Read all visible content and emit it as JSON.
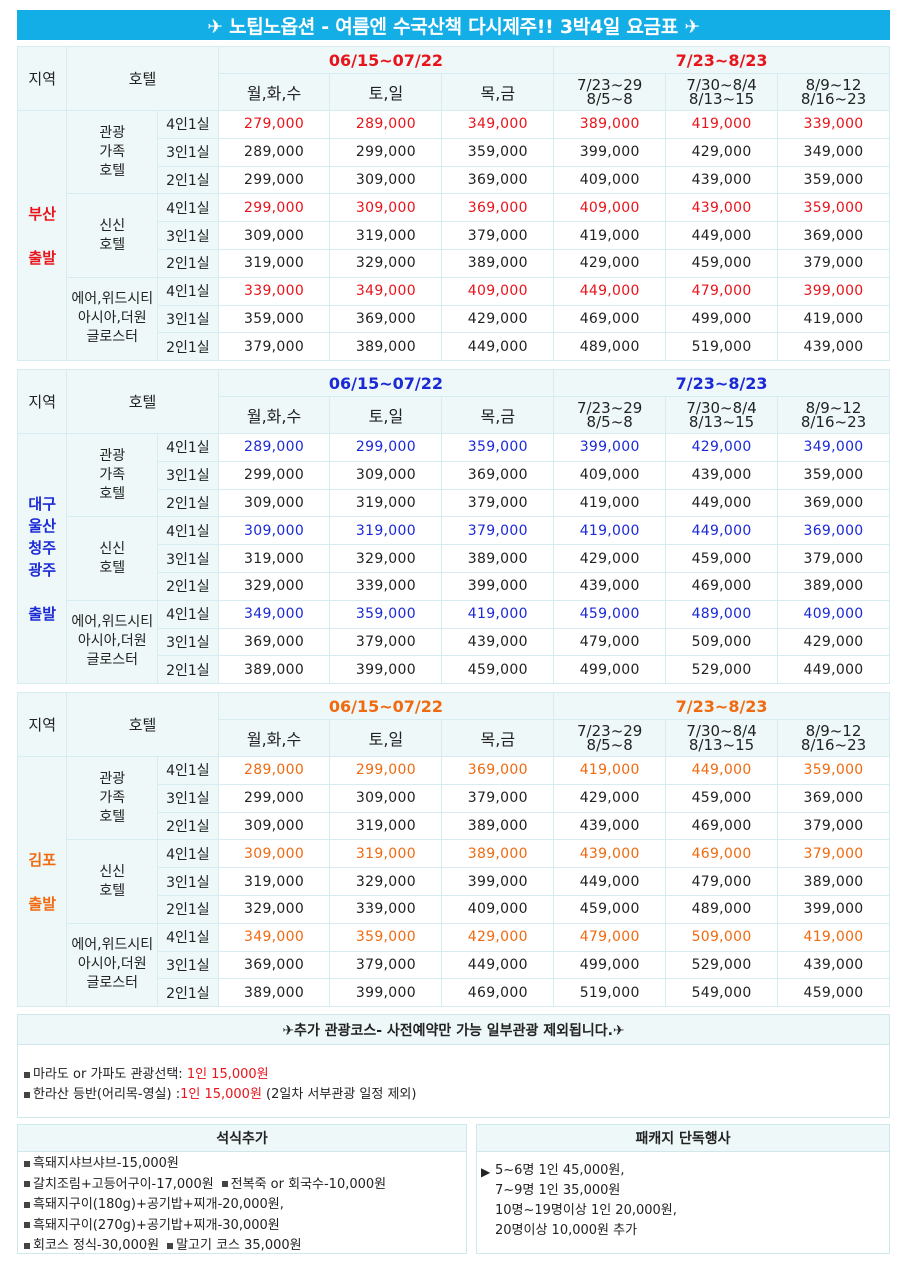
{
  "title": "✈ 노팁노옵션 - 여름엔 수국산책 다시제주!! 3박4일 요금표 ✈",
  "header": {
    "region": "지역",
    "hotel": "호텔",
    "period1": "06/15~07/22",
    "period2": "7/23~8/23",
    "days": [
      "월,화,수",
      "토,일",
      "목,금"
    ],
    "subperiods": [
      [
        "7/23~29",
        "8/5~8"
      ],
      [
        "7/30~8/4",
        "8/13~15"
      ],
      [
        "8/9~12",
        "8/16~23"
      ]
    ]
  },
  "sections": [
    {
      "region_lines": [
        "부산",
        "출발"
      ],
      "hotels": [
        {
          "name_lines": [
            "관광",
            "가족",
            "호텔"
          ],
          "rows": [
            {
              "room": "4인1실",
              "prices": [
                "279,000",
                "289,000",
                "349,000",
                "389,000",
                "419,000",
                "339,000"
              ]
            },
            {
              "room": "3인1실",
              "prices": [
                "289,000",
                "299,000",
                "359,000",
                "399,000",
                "429,000",
                "349,000"
              ]
            },
            {
              "room": "2인1실",
              "prices": [
                "299,000",
                "309,000",
                "369,000",
                "409,000",
                "439,000",
                "359,000"
              ]
            }
          ]
        },
        {
          "name_lines": [
            "신신",
            "호텔"
          ],
          "rows": [
            {
              "room": "4인1실",
              "prices": [
                "299,000",
                "309,000",
                "369,000",
                "409,000",
                "439,000",
                "359,000"
              ]
            },
            {
              "room": "3인1실",
              "prices": [
                "309,000",
                "319,000",
                "379,000",
                "419,000",
                "449,000",
                "369,000"
              ]
            },
            {
              "room": "2인1실",
              "prices": [
                "319,000",
                "329,000",
                "389,000",
                "429,000",
                "459,000",
                "379,000"
              ]
            }
          ]
        },
        {
          "name_lines": [
            "에어,위드시티",
            "아시아,더원",
            "글로스터"
          ],
          "rows": [
            {
              "room": "4인1실",
              "prices": [
                "339,000",
                "349,000",
                "409,000",
                "449,000",
                "479,000",
                "399,000"
              ]
            },
            {
              "room": "3인1실",
              "prices": [
                "359,000",
                "369,000",
                "429,000",
                "469,000",
                "499,000",
                "419,000"
              ]
            },
            {
              "room": "2인1실",
              "prices": [
                "379,000",
                "389,000",
                "449,000",
                "489,000",
                "519,000",
                "439,000"
              ]
            }
          ]
        }
      ]
    },
    {
      "region_lines": [
        "대구",
        "울산",
        "청주",
        "광주",
        "출발"
      ],
      "hotels": [
        {
          "name_lines": [
            "관광",
            "가족",
            "호텔"
          ],
          "rows": [
            {
              "room": "4인1실",
              "prices": [
                "289,000",
                "299,000",
                "359,000",
                "399,000",
                "429,000",
                "349,000"
              ]
            },
            {
              "room": "3인1실",
              "prices": [
                "299,000",
                "309,000",
                "369,000",
                "409,000",
                "439,000",
                "359,000"
              ]
            },
            {
              "room": "2인1실",
              "prices": [
                "309,000",
                "319,000",
                "379,000",
                "419,000",
                "449,000",
                "369,000"
              ]
            }
          ]
        },
        {
          "name_lines": [
            "신신",
            "호텔"
          ],
          "rows": [
            {
              "room": "4인1실",
              "prices": [
                "309,000",
                "319,000",
                "379,000",
                "419,000",
                "449,000",
                "369,000"
              ]
            },
            {
              "room": "3인1실",
              "prices": [
                "319,000",
                "329,000",
                "389,000",
                "429,000",
                "459,000",
                "379,000"
              ]
            },
            {
              "room": "2인1실",
              "prices": [
                "329,000",
                "339,000",
                "399,000",
                "439,000",
                "469,000",
                "389,000"
              ]
            }
          ]
        },
        {
          "name_lines": [
            "에어,위드시티",
            "아시아,더원",
            "글로스터"
          ],
          "rows": [
            {
              "room": "4인1실",
              "prices": [
                "349,000",
                "359,000",
                "419,000",
                "459,000",
                "489,000",
                "409,000"
              ]
            },
            {
              "room": "3인1실",
              "prices": [
                "369,000",
                "379,000",
                "439,000",
                "479,000",
                "509,000",
                "429,000"
              ]
            },
            {
              "room": "2인1실",
              "prices": [
                "389,000",
                "399,000",
                "459,000",
                "499,000",
                "529,000",
                "449,000"
              ]
            }
          ]
        }
      ]
    },
    {
      "region_lines": [
        "김포",
        "출발"
      ],
      "hotels": [
        {
          "name_lines": [
            "관광",
            "가족",
            "호텔"
          ],
          "rows": [
            {
              "room": "4인1실",
              "prices": [
                "289,000",
                "299,000",
                "369,000",
                "419,000",
                "449,000",
                "359,000"
              ]
            },
            {
              "room": "3인1실",
              "prices": [
                "299,000",
                "309,000",
                "379,000",
                "429,000",
                "459,000",
                "369,000"
              ]
            },
            {
              "room": "2인1실",
              "prices": [
                "309,000",
                "319,000",
                "389,000",
                "439,000",
                "469,000",
                "379,000"
              ]
            }
          ]
        },
        {
          "name_lines": [
            "신신",
            "호텔"
          ],
          "rows": [
            {
              "room": "4인1실",
              "prices": [
                "309,000",
                "319,000",
                "389,000",
                "439,000",
                "469,000",
                "379,000"
              ]
            },
            {
              "room": "3인1실",
              "prices": [
                "319,000",
                "329,000",
                "399,000",
                "449,000",
                "479,000",
                "389,000"
              ]
            },
            {
              "room": "2인1실",
              "prices": [
                "329,000",
                "339,000",
                "409,000",
                "459,000",
                "489,000",
                "399,000"
              ]
            }
          ]
        },
        {
          "name_lines": [
            "에어,위드시티",
            "아시아,더원",
            "글로스터"
          ],
          "rows": [
            {
              "room": "4인1실",
              "prices": [
                "349,000",
                "359,000",
                "429,000",
                "479,000",
                "509,000",
                "419,000"
              ]
            },
            {
              "room": "3인1실",
              "prices": [
                "369,000",
                "379,000",
                "449,000",
                "499,000",
                "529,000",
                "439,000"
              ]
            },
            {
              "room": "2인1실",
              "prices": [
                "389,000",
                "399,000",
                "469,000",
                "519,000",
                "549,000",
                "459,000"
              ]
            }
          ]
        }
      ]
    }
  ],
  "extra_tour": {
    "title": "✈추가 관광코스- 사전예약만 가능 일부관광 제외됩니다.✈",
    "item1_label": "마라도 or 가파도 관광선택: ",
    "item1_price": "1인 15,000원",
    "item2_label": "한라산 등반(어리목-영실) :",
    "item2_price": "1인 15,000원",
    "item2_note": " (2일차 서부관광 일정 제외)"
  },
  "meal": {
    "title": "석식추가",
    "lines": [
      [
        "흑돼지샤브샤브-15,000원"
      ],
      [
        "갈치조림+고등어구이-17,000원",
        "전복죽 or 회국수-10,000원"
      ],
      [
        "흑돼지구이(180g)+공기밥+찌개-20,000원,"
      ],
      [
        "흑돼지구이(270g)+공기밥+찌개-30,000원"
      ],
      [
        "회코스 정식-30,000원",
        "말고기 코스 35,000원"
      ]
    ]
  },
  "package": {
    "title": "패캐지 단독행사",
    "lines": [
      "5~6명 1인 45,000원,",
      "7~9명 1인 35,000원",
      "10명~19명이상 1인 20,000원,",
      "20명이상 10,000원 추가"
    ]
  }
}
